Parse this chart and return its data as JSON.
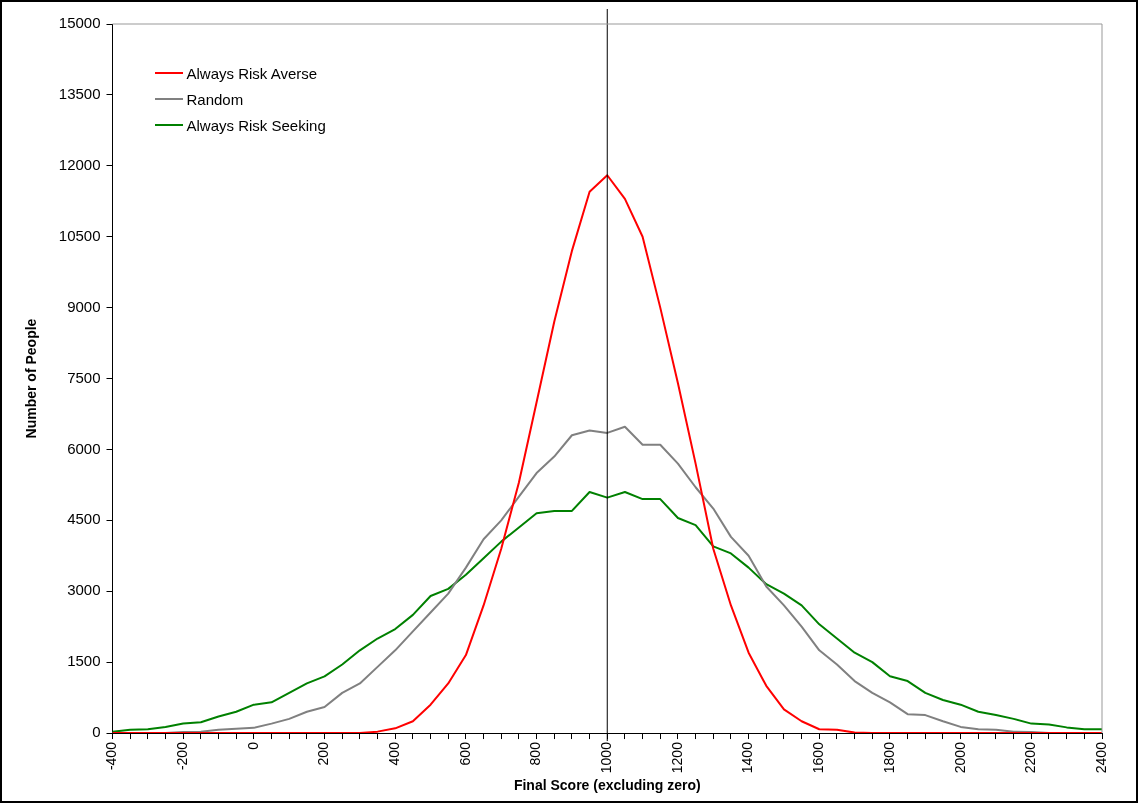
{
  "chart_data": {
    "type": "line",
    "xlabel": "Final Score (excluding zero)",
    "ylabel": "Number of People",
    "x": [
      -400,
      -350,
      -300,
      -250,
      -200,
      -150,
      -100,
      -50,
      0,
      50,
      100,
      150,
      200,
      250,
      300,
      350,
      400,
      450,
      500,
      550,
      600,
      650,
      700,
      750,
      800,
      850,
      900,
      950,
      1000,
      1050,
      1100,
      1150,
      1200,
      1250,
      1300,
      1350,
      1400,
      1450,
      1500,
      1550,
      1600,
      1650,
      1700,
      1750,
      1800,
      1850,
      1900,
      1950,
      2000,
      2050,
      2100,
      2150,
      2200,
      2250,
      2300,
      2350,
      2400
    ],
    "series": [
      {
        "name": "Always Risk Averse",
        "color": "#ff0000",
        "values": [
          0,
          0,
          0,
          0,
          0,
          0,
          0,
          0,
          0,
          0,
          0,
          0,
          0,
          0,
          0,
          30,
          100,
          250,
          600,
          1050,
          1650,
          2700,
          3900,
          5300,
          7000,
          8700,
          10200,
          11450,
          11800,
          11300,
          10500,
          9000,
          7400,
          5700,
          3900,
          2700,
          1700,
          1000,
          500,
          250,
          80,
          70,
          10,
          0,
          0,
          0,
          0,
          0,
          0,
          0,
          0,
          0,
          0,
          0,
          0,
          0,
          0
        ]
      },
      {
        "name": "Random",
        "color": "#808080",
        "values": [
          0,
          0,
          0,
          0,
          20,
          30,
          70,
          90,
          110,
          200,
          300,
          450,
          550,
          850,
          1050,
          1400,
          1750,
          2150,
          2550,
          2950,
          3500,
          4100,
          4500,
          5000,
          5500,
          5850,
          6300,
          6400,
          6350,
          6480,
          6100,
          6100,
          5700,
          5200,
          4750,
          4150,
          3750,
          3100,
          2700,
          2250,
          1750,
          1450,
          1100,
          850,
          650,
          400,
          380,
          250,
          130,
          80,
          70,
          30,
          20,
          0,
          0,
          0,
          0
        ]
      },
      {
        "name": "Always Risk Seeking",
        "color": "#008000",
        "values": [
          30,
          70,
          80,
          130,
          200,
          230,
          350,
          450,
          600,
          650,
          850,
          1050,
          1200,
          1450,
          1750,
          2000,
          2200,
          2500,
          2900,
          3050,
          3350,
          3700,
          4050,
          4350,
          4650,
          4700,
          4700,
          5100,
          4980,
          5100,
          4950,
          4950,
          4550,
          4400,
          3950,
          3800,
          3500,
          3150,
          2950,
          2700,
          2300,
          2000,
          1700,
          1500,
          1200,
          1100,
          850,
          700,
          600,
          450,
          380,
          300,
          200,
          180,
          120,
          80,
          80
        ]
      }
    ],
    "xlim": [
      -400,
      2400
    ],
    "xticks": [
      -400,
      {
        "value": -350,
        "label": null
      },
      {
        "value": -300,
        "label": null
      },
      {
        "value": -250,
        "label": null
      },
      -200,
      {
        "value": -150,
        "label": null
      },
      {
        "value": -100,
        "label": null
      },
      {
        "value": -50,
        "label": null
      },
      0,
      {
        "value": 50,
        "label": null
      },
      {
        "value": 100,
        "label": null
      },
      {
        "value": 150,
        "label": null
      },
      200,
      {
        "value": 250,
        "label": null
      },
      {
        "value": 300,
        "label": null
      },
      {
        "value": 350,
        "label": null
      },
      400,
      {
        "value": 450,
        "label": null
      },
      {
        "value": 500,
        "label": null
      },
      {
        "value": 550,
        "label": null
      },
      600,
      {
        "value": 650,
        "label": null
      },
      {
        "value": 700,
        "label": null
      },
      {
        "value": 750,
        "label": null
      },
      800,
      {
        "value": 850,
        "label": null
      },
      {
        "value": 900,
        "label": null
      },
      {
        "value": 950,
        "label": null
      },
      1000,
      {
        "value": 1050,
        "label": null
      },
      {
        "value": 1100,
        "label": null
      },
      {
        "value": 1150,
        "label": null
      },
      1200,
      {
        "value": 1250,
        "label": null
      },
      {
        "value": 1300,
        "label": null
      },
      {
        "value": 1350,
        "label": null
      },
      1400,
      {
        "value": 1450,
        "label": null
      },
      {
        "value": 1500,
        "label": null
      },
      {
        "value": 1550,
        "label": null
      },
      1600,
      {
        "value": 1650,
        "label": null
      },
      {
        "value": 1700,
        "label": null
      },
      {
        "value": 1750,
        "label": null
      },
      1800,
      {
        "value": 1850,
        "label": null
      },
      {
        "value": 1900,
        "label": null
      },
      {
        "value": 1950,
        "label": null
      },
      2000,
      {
        "value": 2050,
        "label": null
      },
      {
        "value": 2100,
        "label": null
      },
      {
        "value": 2150,
        "label": null
      },
      2200,
      {
        "value": 2250,
        "label": null
      },
      {
        "value": 2300,
        "label": null
      },
      {
        "value": 2350,
        "label": null
      },
      2400
    ],
    "ylim": [
      0,
      15000
    ],
    "yticks": [
      0,
      1500,
      3000,
      4500,
      6000,
      7500,
      9000,
      10500,
      12000,
      13500,
      15000
    ],
    "ref_lines": [
      {
        "axis": "x",
        "value": 1000,
        "color": "#000000"
      }
    ],
    "grid": false,
    "legend": "top left",
    "marker": "none",
    "line_style": "solid"
  }
}
